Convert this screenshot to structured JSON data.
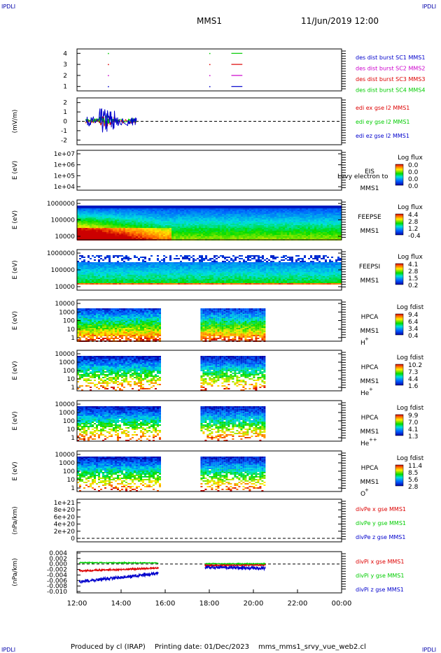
{
  "corner_label": "IPDLI",
  "header": {
    "spacecraft": "MMS1",
    "datetime": "11/Jun/2019 12:00"
  },
  "footer": {
    "produced_by": "Produced by cl (IRAP)",
    "printing_date": "Printing date: 01/Dec/2023",
    "filename": "mms_mms1_srvy_vue_web2.cl"
  },
  "colors": {
    "blue": "#0000cc",
    "magenta": "#cc00cc",
    "red": "#dd0000",
    "green": "#00cc00"
  },
  "time_axis": {
    "ticks": [
      "12:00",
      "14:00",
      "16:00",
      "18:00",
      "20:00",
      "22:00",
      "00:00"
    ],
    "range_hours": [
      12,
      24
    ]
  },
  "chart_data": [
    {
      "id": "panel-burst",
      "type": "scatter",
      "yticks": [
        "1",
        "2",
        "3",
        "4"
      ],
      "ylim": [
        0.6,
        4.4
      ],
      "series": [
        {
          "name": "des dist burst SC1 MMS1",
          "color": "#0000cc",
          "level": 1
        },
        {
          "name": "des dist burst SC2 MMS2",
          "color": "#cc00cc",
          "level": 2
        },
        {
          "name": "des dist burst SC3 MMS3",
          "color": "#dd0000",
          "level": 3
        },
        {
          "name": "des dist burst SC4 MMS4",
          "color": "#00cc00",
          "level": 4
        }
      ],
      "points": [
        {
          "t": 13.4,
          "level": [
            1,
            2,
            3,
            4
          ]
        },
        {
          "t": 18.0,
          "level": [
            1,
            2,
            3,
            4
          ]
        }
      ],
      "segments": [
        {
          "t0": 19.0,
          "t1": 19.5,
          "level": [
            1,
            2,
            3,
            4
          ]
        }
      ]
    },
    {
      "id": "panel-edi",
      "type": "line",
      "ylabel": "(mV/m)",
      "yticks": [
        "2",
        "1",
        "0",
        "-1",
        "-2"
      ],
      "ylim": [
        -2.5,
        2.5
      ],
      "series": [
        {
          "name": "edi ex gse l2 MMS1",
          "color": "#dd0000"
        },
        {
          "name": "edi ey gse l2 MMS1",
          "color": "#00cc00"
        },
        {
          "name": "edi ez gse l2 MMS1",
          "color": "#0000cc"
        }
      ],
      "t_range": [
        12.4,
        14.7
      ],
      "zero_line": true
    },
    {
      "id": "panel-eis",
      "type": "heatmap",
      "ylabel": "E (eV)",
      "yticks": [
        "1e+07",
        "1e+06",
        "1e+05",
        "1e+04"
      ],
      "instrument": "EIS",
      "instrument_sub": "MMS1",
      "overlay_text": "Levy electron to",
      "colorbar": {
        "title": "Log flux",
        "ticks": [
          "0.0",
          "0.0",
          "0.0",
          "0.0"
        ]
      },
      "data": "empty"
    },
    {
      "id": "panel-feepse",
      "type": "heatmap",
      "ylabel": "E (eV)",
      "yticks": [
        "1000000",
        "100000",
        "10000"
      ],
      "instrument": "FEEPSE",
      "instrument_sub": "MMS1",
      "colorbar": {
        "title": "Log flux",
        "ticks": [
          "4.4",
          "2.8",
          "1.2",
          "-0.4"
        ]
      },
      "coverage": [
        [
          12,
          24
        ]
      ]
    },
    {
      "id": "panel-feepsi",
      "type": "heatmap",
      "ylabel": "E (eV)",
      "yticks": [
        "1000000",
        "100000",
        "10000"
      ],
      "instrument": "FEEPSI",
      "instrument_sub": "MMS1",
      "colorbar": {
        "title": "Log flux",
        "ticks": [
          "4.1",
          "2.8",
          "1.5",
          "0.2"
        ]
      },
      "coverage": [
        [
          12,
          24
        ]
      ]
    },
    {
      "id": "panel-hpca-h",
      "type": "heatmap",
      "ylabel": "E (eV)",
      "yticks": [
        "10000",
        "1000",
        "100",
        "10",
        "1"
      ],
      "instrument": "HPCA",
      "instrument_sub": "MMS1",
      "species": "H",
      "charge": "+",
      "colorbar": {
        "title": "Log fdist",
        "ticks": [
          "9.4",
          "6.4",
          "3.4",
          "0.4"
        ]
      },
      "coverage": [
        [
          12,
          15.75
        ],
        [
          17.6,
          20.55
        ]
      ]
    },
    {
      "id": "panel-hpca-he",
      "type": "heatmap",
      "ylabel": "E (eV)",
      "yticks": [
        "10000",
        "1000",
        "100",
        "10",
        "1"
      ],
      "instrument": "HPCA",
      "instrument_sub": "MMS1",
      "species": "He",
      "charge": "+",
      "colorbar": {
        "title": "Log fdist",
        "ticks": [
          "10.2",
          "7.3",
          "4.4",
          "1.6"
        ]
      },
      "coverage": [
        [
          12,
          15.75
        ],
        [
          17.6,
          20.55
        ]
      ]
    },
    {
      "id": "panel-hpca-hepp",
      "type": "heatmap",
      "ylabel": "E (eV)",
      "yticks": [
        "10000",
        "1000",
        "100",
        "10",
        "1"
      ],
      "instrument": "HPCA",
      "instrument_sub": "MMS1",
      "species": "He",
      "charge": "++",
      "colorbar": {
        "title": "Log fdist",
        "ticks": [
          "9.9",
          "7.0",
          "4.1",
          "1.3"
        ]
      },
      "coverage": [
        [
          12,
          15.75
        ],
        [
          17.6,
          20.55
        ]
      ]
    },
    {
      "id": "panel-hpca-o",
      "type": "heatmap",
      "ylabel": "E (eV)",
      "yticks": [
        "10000",
        "1000",
        "100",
        "10",
        "1"
      ],
      "instrument": "HPCA",
      "instrument_sub": "MMS1",
      "species": "O",
      "charge": "+",
      "colorbar": {
        "title": "Log fdist",
        "ticks": [
          "11.4",
          "8.5",
          "5.6",
          "2.8"
        ]
      },
      "coverage": [
        [
          12,
          15.75
        ],
        [
          17.6,
          20.55
        ]
      ]
    },
    {
      "id": "panel-divpe",
      "type": "line",
      "ylabel": "(nPa/km)",
      "yticks": [
        "1e+21",
        "8e+20",
        "6e+20",
        "4e+20",
        "2e+20",
        "0"
      ],
      "ylim": [
        0,
        1e+21
      ],
      "series": [
        {
          "name": "divPe x gse MMS1",
          "color": "#dd0000"
        },
        {
          "name": "divPe y gse MMS1",
          "color": "#00cc00"
        },
        {
          "name": "divPe z gse MMS1",
          "color": "#0000cc"
        }
      ],
      "zero_line": true,
      "data": "empty"
    },
    {
      "id": "panel-divpi",
      "type": "line",
      "ylabel": "(nPa/km)",
      "yticks": [
        "0.004",
        "0.002",
        "0.000",
        "-0.002",
        "-0.004",
        "-0.006",
        "-0.008",
        "-0.010"
      ],
      "ylim": [
        -0.01,
        0.004
      ],
      "series": [
        {
          "name": "divPi x gse MMS1",
          "color": "#dd0000",
          "levels": [
            [
              12.1,
              -0.0025
            ],
            [
              15.6,
              -0.0015
            ],
            [
              17.8,
              -0.0005
            ],
            [
              20.5,
              -0.0003
            ]
          ]
        },
        {
          "name": "divPi y gse MMS1",
          "color": "#00cc00",
          "levels": [
            [
              12.1,
              0.0005
            ],
            [
              15.6,
              0.0004
            ],
            [
              17.8,
              0.0001
            ],
            [
              20.5,
              0.0001
            ]
          ]
        },
        {
          "name": "divPi z gse MMS1",
          "color": "#0000cc",
          "levels": [
            [
              12.1,
              -0.0065
            ],
            [
              15.6,
              -0.0035
            ],
            [
              17.8,
              -0.0012
            ],
            [
              20.5,
              -0.0015
            ]
          ]
        }
      ],
      "t_range": [
        12.1,
        20.55
      ],
      "zero_line": true
    }
  ]
}
